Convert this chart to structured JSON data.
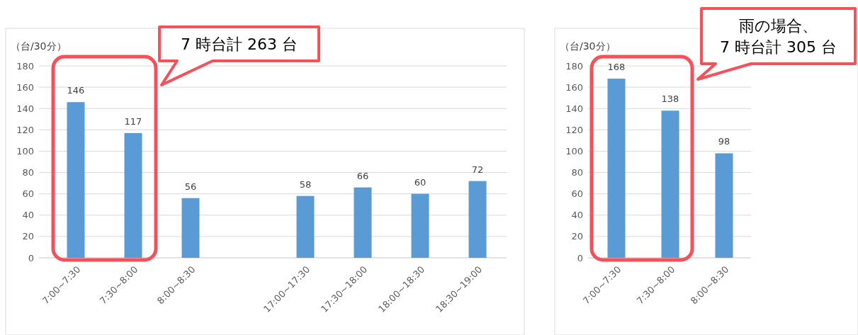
{
  "chart_data": [
    {
      "type": "bar",
      "ylabel": "（台/30分）",
      "categories": [
        "7:00~7:30",
        "7:30~8:00",
        "8:00~8:30",
        null,
        "17:00~17:30",
        "17:30~18:00",
        "18:00~18:30",
        "18:30~19:00"
      ],
      "values": [
        146,
        117,
        56,
        null,
        58,
        66,
        60,
        72
      ],
      "color": "#5b9bd5",
      "ylim": [
        0,
        180
      ],
      "yticks": [
        0,
        20,
        40,
        60,
        80,
        100,
        120,
        140,
        160,
        180
      ],
      "grid": "y",
      "data_labels": true,
      "annotations": [
        "7 時台計 263 台"
      ]
    },
    {
      "type": "bar",
      "ylabel": "（台/30分）",
      "categories": [
        "7:00~7:30",
        "7:30~8:00",
        "8:00~8:30"
      ],
      "values": [
        168,
        138,
        98
      ],
      "color": "#5b9bd5",
      "ylim": [
        0,
        180
      ],
      "yticks": [
        0,
        20,
        40,
        60,
        80,
        100,
        120,
        140,
        160,
        180
      ],
      "grid": "y",
      "data_labels": true,
      "annotations": [
        "雨の場合、\n7 時台計 305 台"
      ]
    }
  ]
}
